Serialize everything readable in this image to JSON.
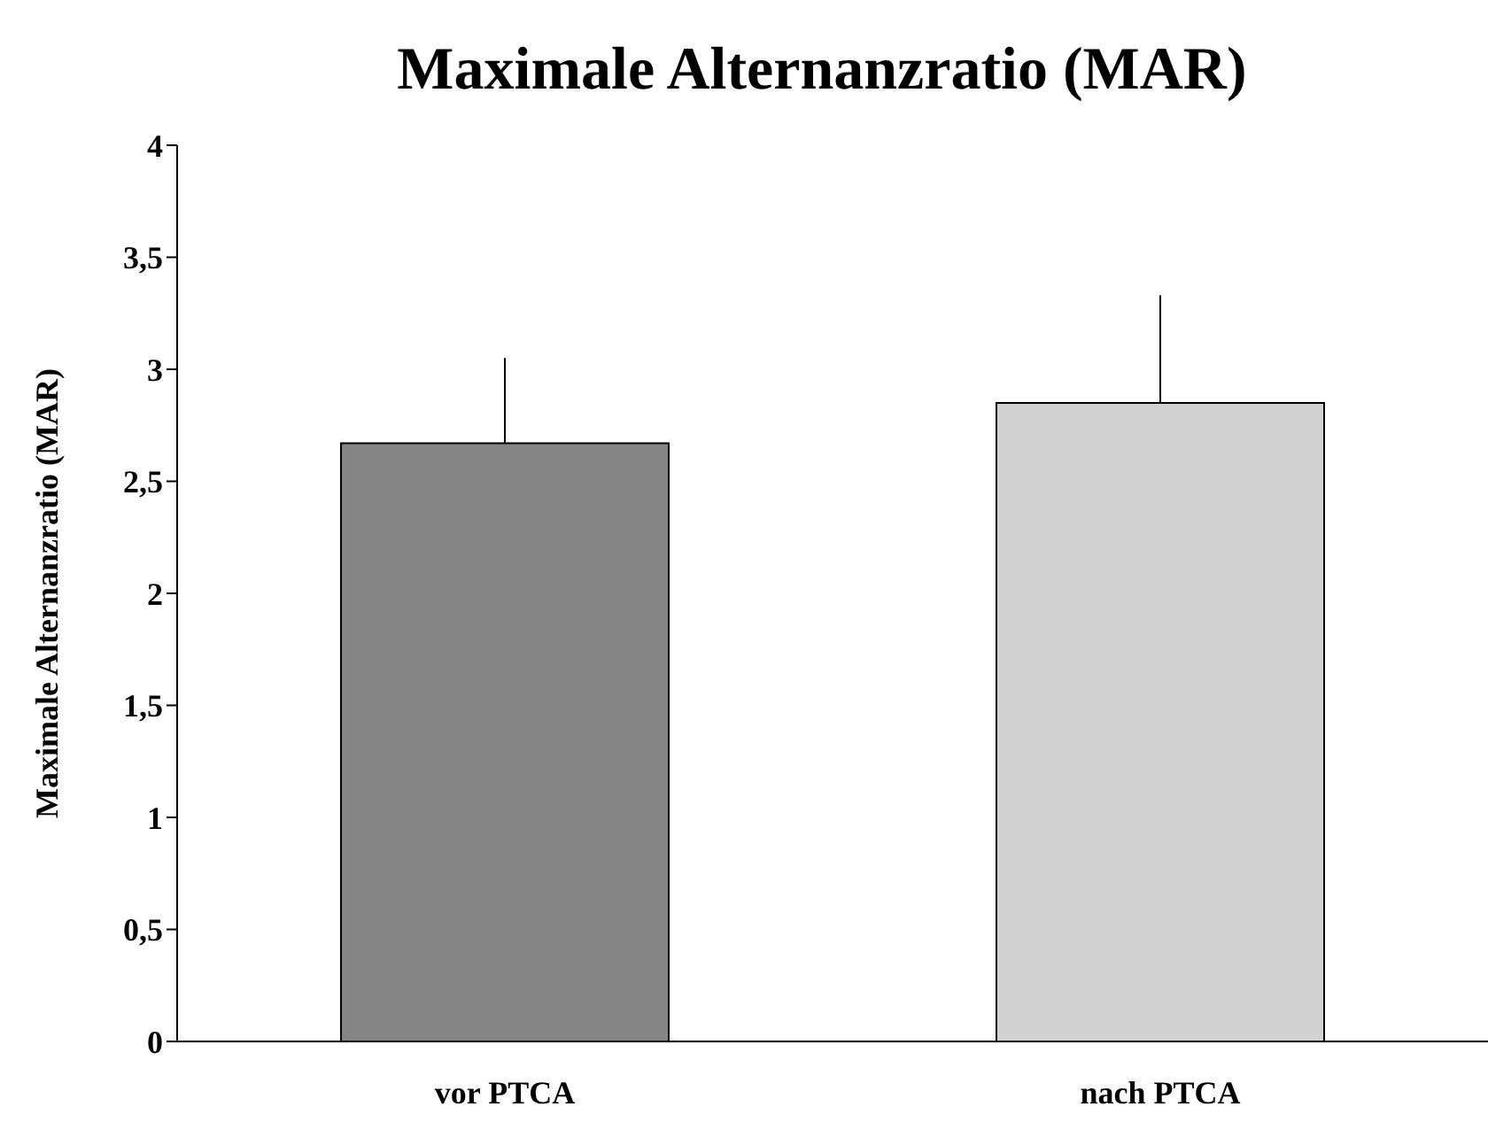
{
  "chart_data": {
    "type": "bar",
    "title": "Maximale Alternanzratio (MAR)",
    "ylabel": "Maximale Alternanzratio (MAR)",
    "categories": [
      "vor PTCA",
      "nach PTCA"
    ],
    "values": [
      2.67,
      2.85
    ],
    "colors": [
      "#858585",
      "#d2d2d2"
    ],
    "errors": [
      [
        2.67,
        3.05
      ],
      [
        2.85,
        3.33
      ]
    ],
    "ylim": [
      0,
      4
    ],
    "yticks": [
      0,
      {
        "value": 0.5,
        "label": "0,5"
      },
      1,
      {
        "value": 1.5,
        "label": "1,5"
      },
      2,
      {
        "value": 2.5,
        "label": "2,5"
      },
      3,
      {
        "value": 3.5,
        "label": "3,5"
      },
      4
    ],
    "grid": false,
    "legend": false
  }
}
